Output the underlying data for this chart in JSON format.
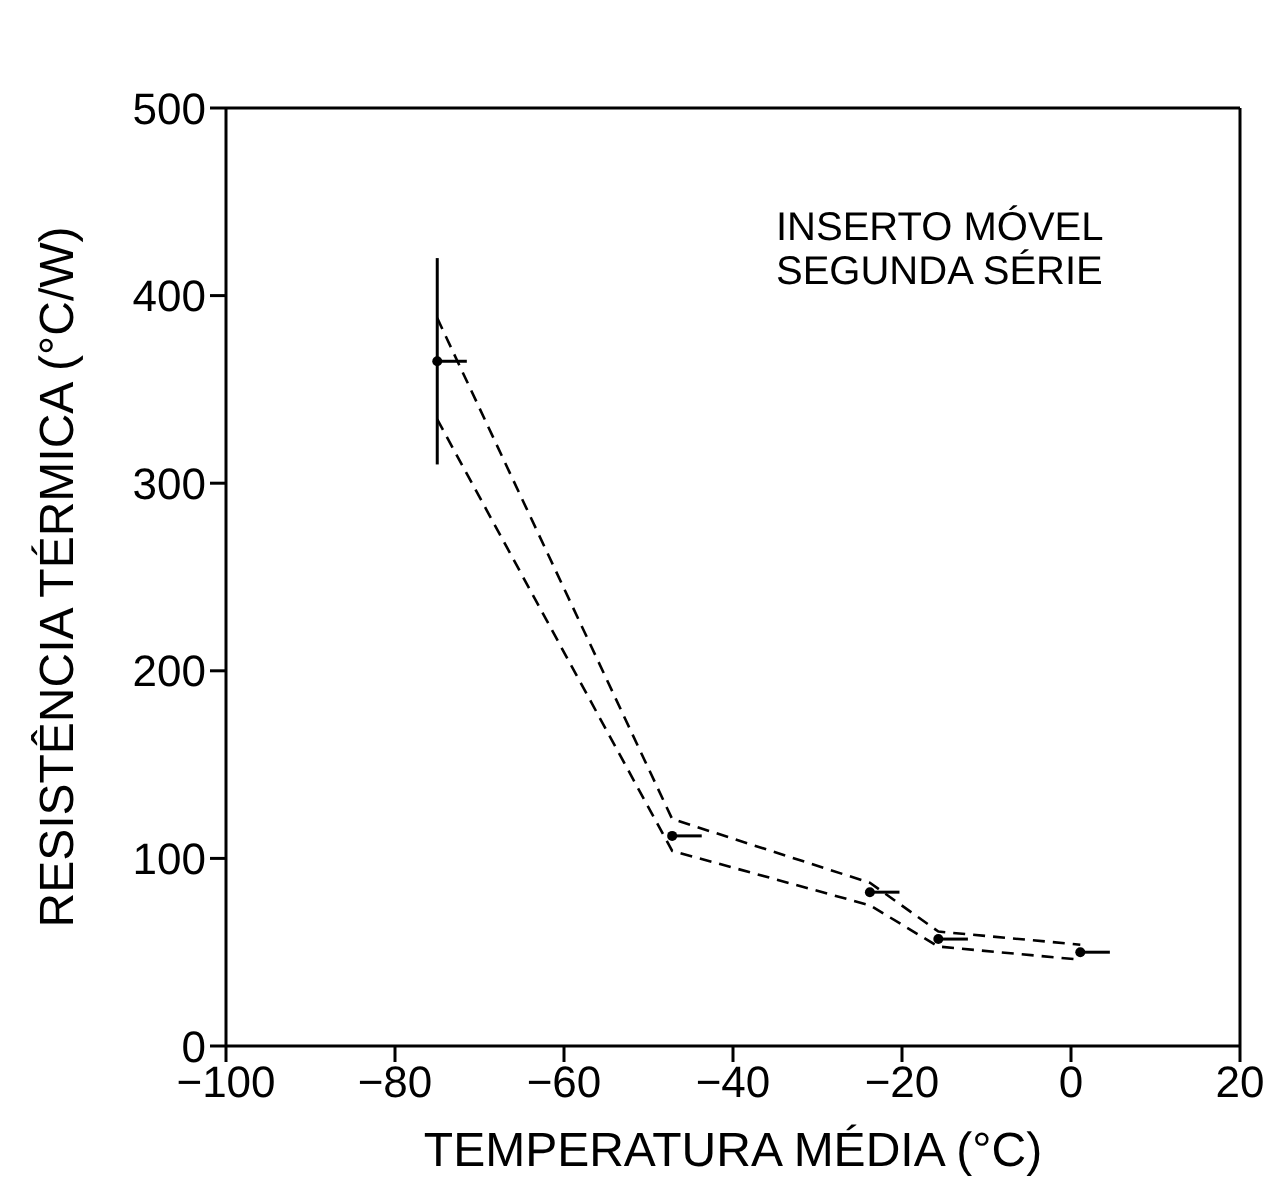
{
  "chart_data": {
    "type": "line",
    "xlabel": "TEMPERATURA MÉDIA (°C)",
    "ylabel": "RESISTÊNCIA TÉRMICA (°C/W)",
    "annotations": [
      "INSERTO MÓVEL\nSEGUNDA SÉRIE"
    ],
    "xlim": [
      -100,
      20
    ],
    "xticks": [
      -100,
      -80,
      -60,
      -40,
      -20,
      0,
      20
    ],
    "ylim": [
      0,
      500
    ],
    "yticks": [
      0,
      100,
      200,
      300,
      400,
      500
    ],
    "grid": false,
    "line_style": "dashed",
    "series": [
      {
        "color": "#000000",
        "x": [
          -75,
          -47.2,
          -23.8,
          -15.7,
          1.1
        ],
        "values": [
          388,
          121,
          87,
          61,
          54
        ]
      },
      {
        "color": "#000000",
        "x": [
          -75,
          -47.2,
          -23.8,
          -15.7,
          1.1
        ],
        "values": [
          334,
          104,
          75,
          53,
          46
        ]
      },
      {
        "type": "scatter",
        "color": "#000000",
        "x": [
          -75,
          -47.2,
          -23.8,
          -15.7,
          1.1
        ],
        "values": [
          365,
          112,
          82,
          57,
          50
        ],
        "marker": "circle",
        "errors": [
          [
            310,
            420
          ],
          null,
          null,
          null,
          null
        ],
        "xerrors": [
          [
            -75,
            -71.5
          ],
          [
            -47.2,
            -43.7
          ],
          [
            -23.8,
            -20.3
          ],
          [
            -15.7,
            -12.2
          ],
          [
            1.1,
            4.6
          ]
        ]
      }
    ]
  }
}
